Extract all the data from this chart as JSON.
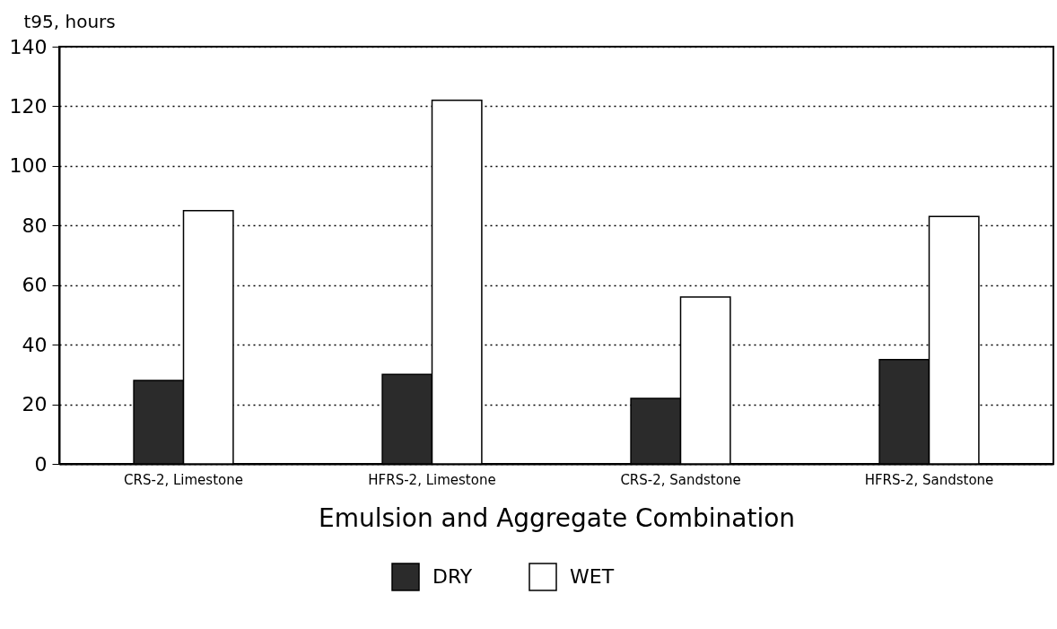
{
  "chart_data": {
    "type": "bar",
    "xlabel": "Emulsion and Aggregate Combination",
    "ylabel": "t95, hours",
    "categories": [
      "CRS-2, Limestone",
      "HFRS-2, Limestone",
      "CRS-2, Sandstone",
      "HFRS-2, Sandstone"
    ],
    "series": [
      {
        "name": "DRY",
        "color": "#2b2b2b",
        "values": [
          28,
          30,
          22,
          35
        ]
      },
      {
        "name": "WET",
        "color": "#ffffff",
        "values": [
          85,
          122,
          56,
          83
        ]
      }
    ],
    "ylim": [
      0,
      140
    ],
    "yticks": [
      0,
      20,
      40,
      60,
      80,
      100,
      120,
      140
    ],
    "grid": "y",
    "legend": "bottom"
  }
}
